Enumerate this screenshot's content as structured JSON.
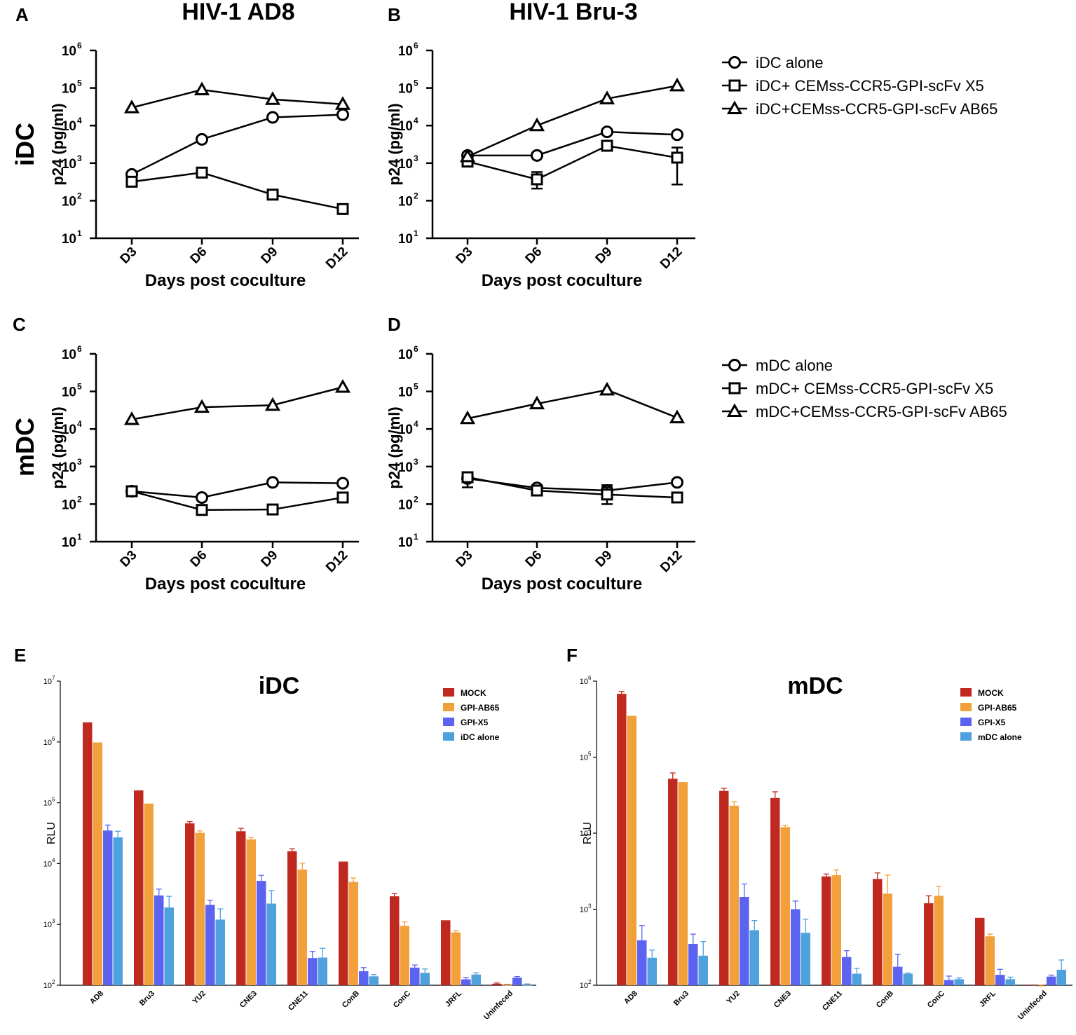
{
  "figure": {
    "panel_labels": [
      "A",
      "B",
      "C",
      "D",
      "E",
      "F"
    ],
    "column_titles": [
      "HIV-1 AD8",
      "HIV-1 Bru-3"
    ],
    "row_labels": [
      "iDC",
      "mDC"
    ],
    "line_xlabel": "Days post coculture",
    "line_ylabel": "p24 (pg/ml)",
    "bar_ylabel": "RLU"
  },
  "legends": {
    "top": [
      "iDC alone",
      "iDC+ CEMss-CCR5-GPI-scFv X5",
      "iDC+CEMss-CCR5-GPI-scFv AB65"
    ],
    "middle": [
      "mDC alone",
      "mDC+ CEMss-CCR5-GPI-scFv X5",
      "mDC+CEMss-CCR5-GPI-scFv AB65"
    ]
  },
  "colors": {
    "line": "#000000",
    "mock": "#c0291f",
    "gpi_ab65": "#f2a03c",
    "gpi_x5": "#5b63f0",
    "dc_alone": "#4ea1dd"
  },
  "chart_data": [
    {
      "panel": "A",
      "type": "line",
      "title": "HIV-1 AD8",
      "row": "iDC",
      "yscale": "log",
      "xlabel": "Days post coculture",
      "ylabel": "p24 (pg/ml)",
      "ylim": [
        10,
        1000000
      ],
      "categories": [
        "D3",
        "D6",
        "D9",
        "D12"
      ],
      "series": [
        {
          "name": "iDC alone",
          "marker": "circle",
          "values": [
            500,
            4300,
            16500,
            19500
          ]
        },
        {
          "name": "iDC+ CEMss-CCR5-GPI-scFv X5",
          "marker": "square",
          "values": [
            320,
            560,
            145,
            60
          ]
        },
        {
          "name": "iDC+CEMss-CCR5-GPI-scFv AB65",
          "marker": "triangle",
          "values": [
            30000,
            90000,
            50000,
            37000
          ]
        }
      ]
    },
    {
      "panel": "B",
      "type": "line",
      "title": "HIV-1 Bru-3",
      "row": "iDC",
      "yscale": "log",
      "xlabel": "Days post coculture",
      "ylabel": "p24 (pg/ml)",
      "ylim": [
        10,
        1000000
      ],
      "categories": [
        "D3",
        "D6",
        "D9",
        "D12"
      ],
      "series": [
        {
          "name": "iDC alone",
          "marker": "circle",
          "values": [
            1600,
            1600,
            6800,
            5700
          ]
        },
        {
          "name": "iDC+ CEMss-CCR5-GPI-scFv X5",
          "marker": "square",
          "values": [
            1100,
            370,
            2900,
            1400
          ],
          "err_low": [
            null,
            210,
            null,
            270
          ],
          "err_high": [
            null,
            580,
            null,
            2600
          ]
        },
        {
          "name": "iDC+CEMss-CCR5-GPI-scFv AB65",
          "marker": "triangle",
          "values": [
            1500,
            10000,
            52000,
            115000
          ]
        }
      ]
    },
    {
      "panel": "C",
      "type": "line",
      "row": "mDC",
      "yscale": "log",
      "xlabel": "Days post coculture",
      "ylabel": "p24 (pg/ml)",
      "ylim": [
        10,
        1000000
      ],
      "categories": [
        "D3",
        "D6",
        "D9",
        "D12"
      ],
      "series": [
        {
          "name": "mDC alone",
          "marker": "circle",
          "values": [
            220,
            150,
            380,
            360
          ]
        },
        {
          "name": "mDC+ CEMss-CCR5-GPI-scFv X5",
          "marker": "square",
          "values": [
            220,
            70,
            72,
            150
          ]
        },
        {
          "name": "mDC+CEMss-CCR5-GPI-scFv AB65",
          "marker": "triangle",
          "values": [
            18000,
            38000,
            43000,
            130000
          ]
        }
      ]
    },
    {
      "panel": "D",
      "type": "line",
      "row": "mDC",
      "yscale": "log",
      "xlabel": "Days post coculture",
      "ylabel": "p24 (pg/ml)",
      "ylim": [
        10,
        1000000
      ],
      "categories": [
        "D3",
        "D6",
        "D9",
        "D12"
      ],
      "series": [
        {
          "name": "mDC alone",
          "marker": "circle",
          "values": [
            480,
            270,
            230,
            380
          ],
          "err_low": [
            280,
            null,
            150,
            null
          ],
          "err_high": [
            560,
            null,
            320,
            null
          ]
        },
        {
          "name": "mDC+ CEMss-CCR5-GPI-scFv X5",
          "marker": "square",
          "values": [
            520,
            230,
            180,
            150
          ],
          "err_low": [
            null,
            null,
            100,
            null
          ],
          "err_high": [
            null,
            null,
            280,
            null
          ]
        },
        {
          "name": "mDC+CEMss-CCR5-GPI-scFv AB65",
          "marker": "triangle",
          "values": [
            19000,
            47000,
            110000,
            20000
          ]
        }
      ]
    },
    {
      "panel": "E",
      "type": "bar",
      "title": "iDC",
      "yscale": "log",
      "ylabel": "RLU",
      "ylim": [
        100,
        10000000
      ],
      "categories": [
        "AD8",
        "Bru3",
        "YU2",
        "CNE3",
        "CNE11",
        "ConB",
        "ConC",
        "JRFL",
        "Uninfeced"
      ],
      "series": [
        {
          "name": "MOCK",
          "color": "#c0291f",
          "values": [
            2100000,
            160000,
            46000,
            34000,
            16000,
            10800,
            2900,
            1170,
            106
          ],
          "errors": [
            0,
            0,
            3000,
            4000,
            1500,
            0,
            300,
            0,
            3
          ]
        },
        {
          "name": "GPI-AB65",
          "color": "#f2a03c",
          "values": [
            980000,
            97000,
            32000,
            25000,
            8000,
            5000,
            950,
            740,
            100
          ],
          "errors": [
            0,
            0,
            2500,
            2000,
            2200,
            800,
            150,
            50,
            4
          ]
        },
        {
          "name": "GPI-X5",
          "color": "#5b63f0",
          "values": [
            35000,
            3000,
            2100,
            5200,
            280,
            170,
            195,
            125,
            133
          ],
          "errors": [
            8000,
            800,
            400,
            1200,
            80,
            25,
            20,
            8,
            6
          ]
        },
        {
          "name": "iDC alone",
          "color": "#4ea1dd",
          "values": [
            27000,
            1900,
            1200,
            2200,
            285,
            140,
            160,
            150,
            100
          ],
          "errors": [
            7000,
            1000,
            600,
            1400,
            120,
            10,
            25,
            10,
            5
          ]
        }
      ]
    },
    {
      "panel": "F",
      "type": "bar",
      "title": "mDC",
      "yscale": "log",
      "ylabel": "RLU",
      "ylim": [
        100,
        1000000
      ],
      "categories": [
        "AD8",
        "Bru3",
        "YU2",
        "CNE3",
        "CNE11",
        "ConB",
        "ConC",
        "JRFL",
        "Uninfeced"
      ],
      "series": [
        {
          "name": "MOCK",
          "color": "#c0291f",
          "values": [
            680000,
            52000,
            36000,
            29000,
            2700,
            2500,
            1200,
            770,
            102
          ],
          "errors": [
            50000,
            10000,
            3000,
            6000,
            200,
            500,
            300,
            0,
            0
          ]
        },
        {
          "name": "GPI-AB65",
          "color": "#f2a03c",
          "values": [
            350000,
            47000,
            23000,
            12000,
            2800,
            1600,
            1500,
            440,
            97
          ],
          "errors": [
            0,
            0,
            3000,
            700,
            500,
            1200,
            500,
            30,
            4
          ]
        },
        {
          "name": "GPI-X5",
          "color": "#5b63f0",
          "values": [
            390,
            350,
            1450,
            1000,
            235,
            175,
            117,
            137,
            130
          ],
          "errors": [
            220,
            120,
            700,
            280,
            50,
            80,
            15,
            25,
            6
          ]
        },
        {
          "name": "mDC alone",
          "color": "#4ea1dd",
          "values": [
            230,
            245,
            530,
            490,
            142,
            142,
            120,
            120,
            160
          ],
          "errors": [
            60,
            130,
            180,
            250,
            25,
            3,
            5,
            8,
            55
          ]
        }
      ]
    }
  ]
}
